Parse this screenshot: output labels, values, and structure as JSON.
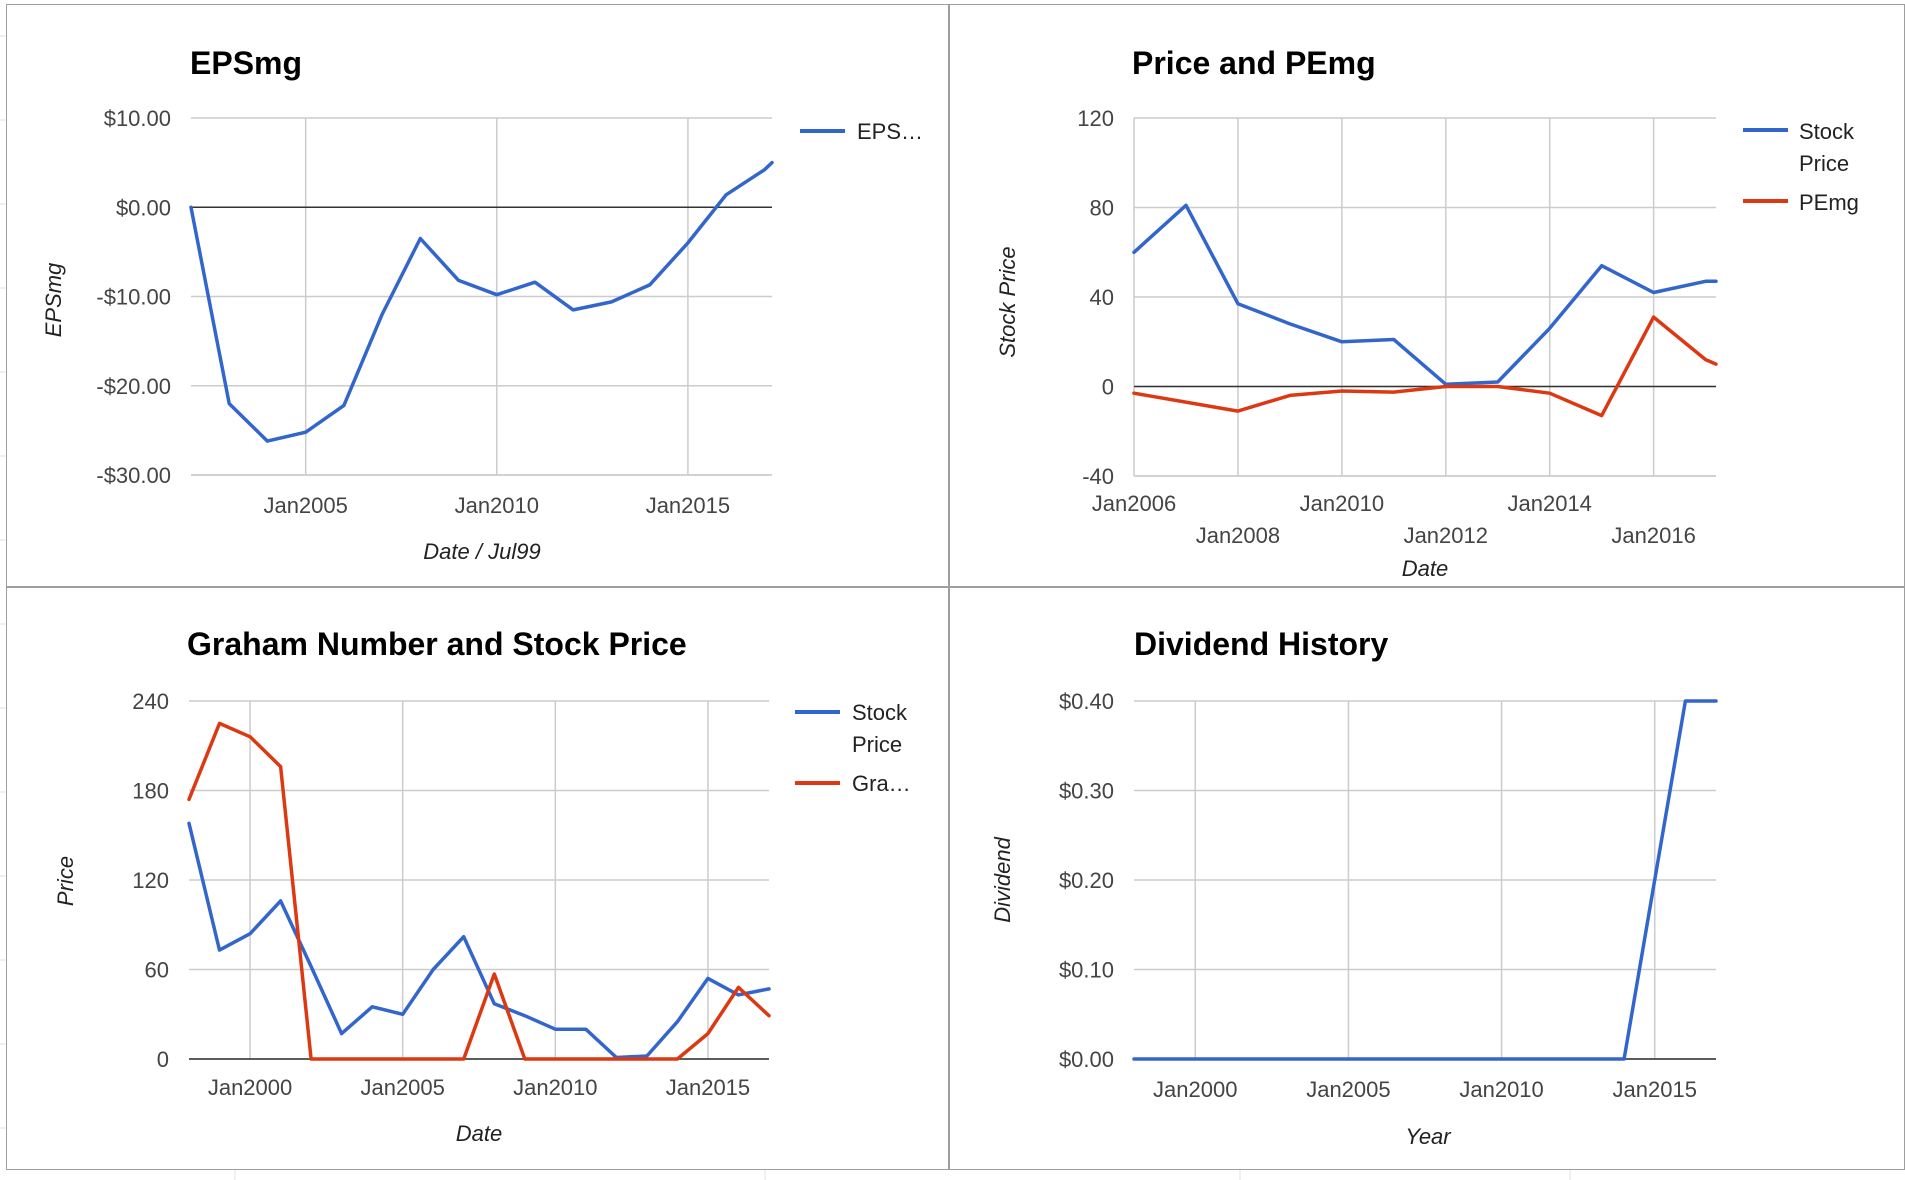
{
  "colors": {
    "blue": "#3366cc",
    "red": "#dc3912"
  },
  "chart_data": [
    {
      "id": "eps",
      "type": "line",
      "title": "EPSmg",
      "xlabel": "Date / Jul99",
      "ylabel": "EPSmg",
      "ylim": [
        -30,
        10
      ],
      "yticks": [
        10,
        0,
        -10,
        -20,
        -30
      ],
      "ytick_labels": [
        "$10.00",
        "$0.00",
        "-$10.00",
        "-$20.00",
        "-$30.00"
      ],
      "xlim": [
        2002.0,
        2017.2
      ],
      "xticks": [
        2005,
        2010,
        2015
      ],
      "xtick_labels": [
        "Jan2005",
        "Jan2010",
        "Jan2015"
      ],
      "grid": true,
      "legend_position": "right",
      "series": [
        {
          "name": "EPS…",
          "color": "#3366cc",
          "x": [
            2002.0,
            2003.0,
            2004.0,
            2005.0,
            2006.0,
            2007.0,
            2008.0,
            2009.0,
            2010.0,
            2011.0,
            2012.0,
            2013.0,
            2014.0,
            2015.0,
            2016.0,
            2017.0,
            2017.2
          ],
          "y": [
            0.0,
            -22.0,
            -26.2,
            -25.2,
            -22.2,
            -12.0,
            -3.5,
            -8.2,
            -9.8,
            -8.4,
            -11.5,
            -10.6,
            -8.7,
            -4.0,
            1.4,
            4.2,
            5.0
          ]
        }
      ]
    },
    {
      "id": "pe",
      "type": "line",
      "title": "Price and PEmg",
      "xlabel": "Date",
      "ylabel": "Stock Price",
      "ylim": [
        -40,
        120
      ],
      "yticks": [
        120,
        80,
        40,
        0,
        -40
      ],
      "ytick_labels": [
        "120",
        "80",
        "40",
        "0",
        "-40"
      ],
      "xlim": [
        2006.0,
        2017.2
      ],
      "xticks_upper": [
        2006,
        2010,
        2014
      ],
      "xtick_labels_upper": [
        "Jan2006",
        "Jan2010",
        "Jan2014"
      ],
      "xticks_lower": [
        2008,
        2012,
        2016
      ],
      "xtick_labels_lower": [
        "Jan2008",
        "Jan2012",
        "Jan2016"
      ],
      "grid": true,
      "legend_position": "right",
      "series": [
        {
          "name": "Stock Price",
          "color": "#3366cc",
          "x": [
            2006.0,
            2007.0,
            2008.0,
            2009.0,
            2010.0,
            2011.0,
            2012.0,
            2013.0,
            2014.0,
            2015.0,
            2016.0,
            2017.0,
            2017.2
          ],
          "y": [
            60,
            81,
            37,
            28,
            20,
            21,
            1,
            2,
            26,
            54,
            42,
            47,
            47
          ]
        },
        {
          "name": "PEmg",
          "color": "#dc3912",
          "x": [
            2006.0,
            2008.0,
            2009.0,
            2010.0,
            2011.0,
            2012.0,
            2013.0,
            2014.0,
            2015.0,
            2016.0,
            2017.0,
            2017.2
          ],
          "y": [
            -3,
            -11,
            -4,
            -2,
            -2.5,
            0,
            0,
            -3,
            -13,
            31,
            12,
            10
          ]
        }
      ]
    },
    {
      "id": "graham",
      "type": "line",
      "title": "Graham Number and Stock Price",
      "xlabel": "Date",
      "ylabel": "Price",
      "ylim": [
        0,
        240
      ],
      "yticks": [
        240,
        180,
        120,
        60,
        0
      ],
      "ytick_labels": [
        "240",
        "180",
        "120",
        "60",
        "0"
      ],
      "xlim": [
        1998.0,
        2017.0
      ],
      "xticks": [
        2000,
        2005,
        2010,
        2015
      ],
      "xtick_labels": [
        "Jan2000",
        "Jan2005",
        "Jan2010",
        "Jan2015"
      ],
      "grid": true,
      "legend_position": "right",
      "series": [
        {
          "name": "Stock Price",
          "color": "#3366cc",
          "x": [
            1998.0,
            1999.0,
            2000.0,
            2001.0,
            2002.0,
            2003.0,
            2004.0,
            2005.0,
            2006.0,
            2007.0,
            2008.0,
            2009.0,
            2010.0,
            2011.0,
            2012.0,
            2013.0,
            2014.0,
            2015.0,
            2016.0,
            2017.0
          ],
          "y": [
            158,
            73,
            84,
            106,
            62,
            17,
            35,
            30,
            60,
            82,
            37,
            29,
            20,
            20,
            1,
            2,
            25,
            54,
            43,
            47
          ]
        },
        {
          "name": "Gra…",
          "color": "#dc3912",
          "x": [
            1998.0,
            1999.0,
            2000.0,
            2001.0,
            2002.0,
            2003.0,
            2004.0,
            2005.0,
            2006.0,
            2007.0,
            2008.0,
            2009.0,
            2010.0,
            2011.0,
            2012.0,
            2013.0,
            2014.0,
            2015.0,
            2016.0,
            2017.0
          ],
          "y": [
            174,
            225,
            216,
            196,
            0,
            0,
            0,
            0,
            0,
            0,
            57,
            0,
            0,
            0,
            0,
            0,
            0,
            17,
            48,
            29
          ]
        }
      ]
    },
    {
      "id": "dividend",
      "type": "line",
      "title": "Dividend History",
      "xlabel": "Year",
      "ylabel": "Dividend",
      "ylim": [
        0,
        0.4
      ],
      "yticks": [
        0.4,
        0.3,
        0.2,
        0.1,
        0
      ],
      "ytick_labels": [
        "$0.40",
        "$0.30",
        "$0.20",
        "$0.10",
        "$0.00"
      ],
      "xlim": [
        1998.0,
        2017.0
      ],
      "xticks": [
        2000,
        2005,
        2010,
        2015
      ],
      "xtick_labels": [
        "Jan2000",
        "Jan2005",
        "Jan2010",
        "Jan2015"
      ],
      "grid": true,
      "legend_position": "none",
      "series": [
        {
          "name": "",
          "color": "#3366cc",
          "x": [
            1998.0,
            2014.0,
            2015.0,
            2016.0,
            2017.0
          ],
          "y": [
            0,
            0,
            0.2,
            0.4,
            0.4
          ]
        }
      ]
    }
  ]
}
